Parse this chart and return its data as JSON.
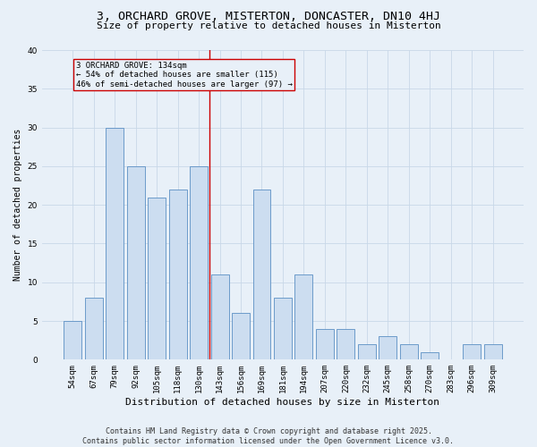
{
  "title1": "3, ORCHARD GROVE, MISTERTON, DONCASTER, DN10 4HJ",
  "title2": "Size of property relative to detached houses in Misterton",
  "xlabel": "Distribution of detached houses by size in Misterton",
  "ylabel": "Number of detached properties",
  "bar_labels": [
    "54sqm",
    "67sqm",
    "79sqm",
    "92sqm",
    "105sqm",
    "118sqm",
    "130sqm",
    "143sqm",
    "156sqm",
    "169sqm",
    "181sqm",
    "194sqm",
    "207sqm",
    "220sqm",
    "232sqm",
    "245sqm",
    "258sqm",
    "270sqm",
    "283sqm",
    "296sqm",
    "309sqm"
  ],
  "bar_values": [
    5,
    8,
    30,
    25,
    21,
    22,
    25,
    11,
    6,
    22,
    8,
    11,
    4,
    4,
    2,
    3,
    2,
    1,
    0,
    2,
    2
  ],
  "bar_color": "#ccddf0",
  "bar_edgecolor": "#5b8fc4",
  "grid_color": "#c8d8e8",
  "bg_color": "#e8f0f8",
  "vline_x": 6.5,
  "vline_color": "#cc0000",
  "annotation_text": "3 ORCHARD GROVE: 134sqm\n← 54% of detached houses are smaller (115)\n46% of semi-detached houses are larger (97) →",
  "annotation_box_edgecolor": "#cc0000",
  "annotation_fontsize": 6.5,
  "ylim": [
    0,
    40
  ],
  "yticks": [
    0,
    5,
    10,
    15,
    20,
    25,
    30,
    35,
    40
  ],
  "footer": "Contains HM Land Registry data © Crown copyright and database right 2025.\nContains public sector information licensed under the Open Government Licence v3.0.",
  "title1_fontsize": 9.5,
  "title2_fontsize": 8,
  "xlabel_fontsize": 8,
  "ylabel_fontsize": 7,
  "tick_fontsize": 6.5
}
